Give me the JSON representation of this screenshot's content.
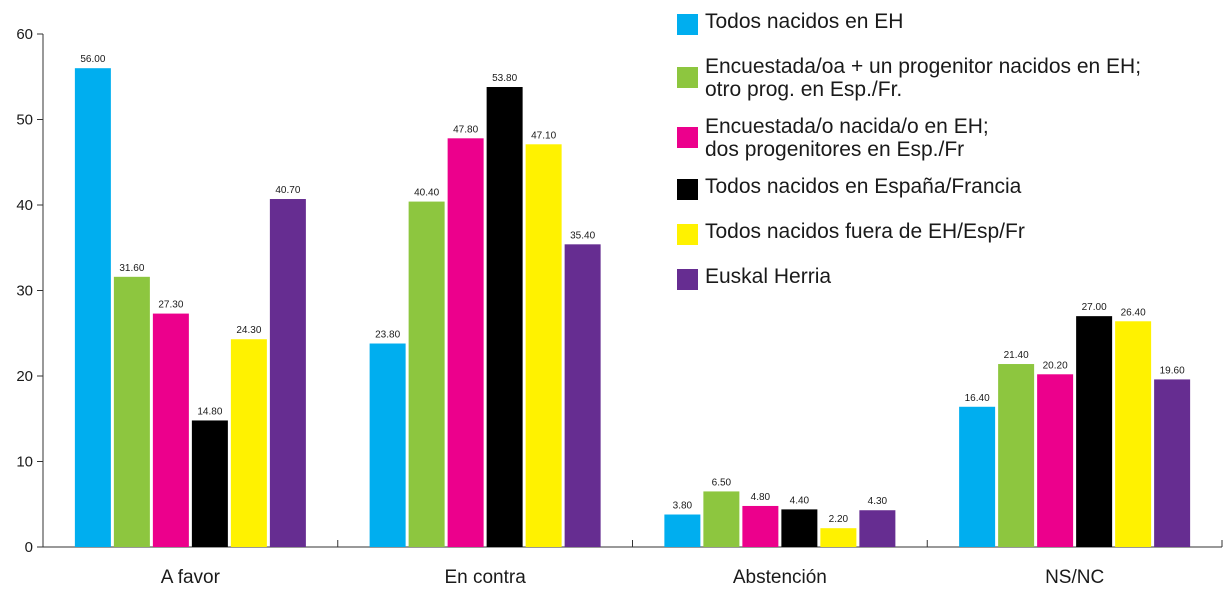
{
  "chart_data": {
    "type": "bar",
    "categories": [
      "A favor",
      "En contra",
      "Abstención",
      "NS/NC"
    ],
    "ylim": [
      0,
      60
    ],
    "yticks": [
      0,
      10,
      20,
      30,
      40,
      50,
      60
    ],
    "grid": false,
    "legend_position": "top-right",
    "series": [
      {
        "name": "Todos nacidos en EH",
        "color": "#00aeef",
        "values": [
          56.0,
          23.8,
          3.8,
          16.4
        ],
        "labels": [
          "56.00",
          "23.80",
          "3.80",
          "16.40"
        ]
      },
      {
        "name": "Encuestada/oa + un progenitor nacidos en EH;\notro prog. en Esp./Fr.",
        "color": "#8dc63f",
        "values": [
          31.6,
          40.4,
          6.5,
          21.4
        ],
        "labels": [
          "31.60",
          "40.40",
          "6.50",
          "21.40"
        ]
      },
      {
        "name": "Encuestada/o nacida/o en EH;\ndos progenitores en Esp./Fr",
        "color": "#ec008c",
        "values": [
          27.3,
          47.8,
          4.8,
          20.2
        ],
        "labels": [
          "27.30",
          "47.80",
          "4.80",
          "20.20"
        ]
      },
      {
        "name": "Todos nacidos en España/Francia",
        "color": "#000000",
        "values": [
          14.8,
          53.8,
          4.4,
          27.0
        ],
        "labels": [
          "14.80",
          "53.80",
          "4.40",
          "27.00"
        ]
      },
      {
        "name": "Todos nacidos fuera de EH/Esp/Fr",
        "color": "#fff200",
        "values": [
          24.3,
          47.1,
          2.2,
          26.4
        ],
        "labels": [
          "24.30",
          "47.10",
          "2.20",
          "26.40"
        ]
      },
      {
        "name": "Euskal Herria",
        "color": "#662d91",
        "values": [
          40.7,
          35.4,
          4.3,
          19.6
        ],
        "labels": [
          "40.70",
          "35.40",
          "4.30",
          "19.60"
        ]
      }
    ]
  }
}
